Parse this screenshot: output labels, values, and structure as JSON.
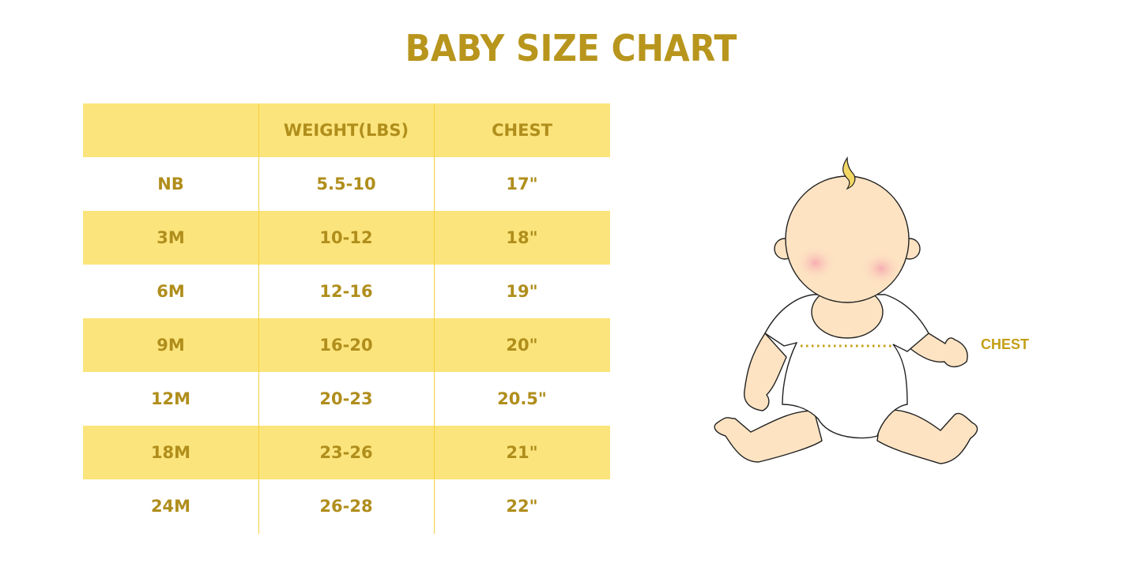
{
  "title": "BABY SIZE CHART",
  "table": {
    "headers": [
      "",
      "WEIGHT(LBS)",
      "CHEST"
    ],
    "rows": [
      [
        "NB",
        "5.5-10",
        "17\""
      ],
      [
        "3M",
        "10-12",
        "18\""
      ],
      [
        "6M",
        "12-16",
        "19\""
      ],
      [
        "9M",
        "16-20",
        "20\""
      ],
      [
        "12M",
        "20-23",
        "20.5\""
      ],
      [
        "18M",
        "23-26",
        "21\""
      ],
      [
        "24M",
        "26-28",
        "22\""
      ]
    ]
  },
  "illustration": {
    "chest_label": "CHEST"
  },
  "colors": {
    "text": "#b08e1c",
    "row_highlight": "#fbe47b",
    "divider": "#f6d23c"
  }
}
